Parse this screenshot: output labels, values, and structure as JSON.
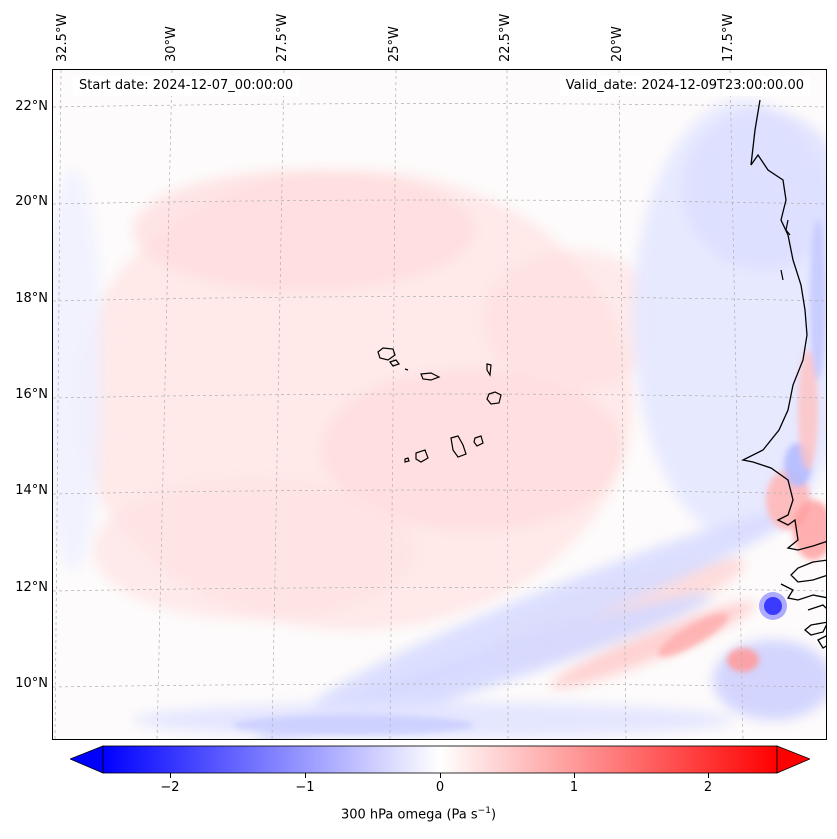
{
  "map": {
    "title_start": "Start date: 2024-12-07_00:00:00",
    "title_valid": "Valid_date: 2024-12-09T23:00:00.00",
    "lon_labels": [
      "32.5°W",
      "30°W",
      "27.5°W",
      "25°W",
      "22.5°W",
      "20°W",
      "17.5°W"
    ],
    "lat_labels": [
      "22°N",
      "20°N",
      "18°N",
      "16°N",
      "14°N",
      "12°N",
      "10°N"
    ],
    "region": "Cape Verde / West African coast",
    "field": "300 hPa vertical velocity (omega)"
  },
  "colorbar": {
    "label": "300 hPa omega (Pa s",
    "label_sup": "−1",
    "label_close": ")",
    "min": -2.6,
    "max": 2.6,
    "ticks": [
      {
        "value": -2,
        "label": "−2"
      },
      {
        "value": -1,
        "label": "−1"
      },
      {
        "value": 0,
        "label": "0"
      },
      {
        "value": 1,
        "label": "1"
      },
      {
        "value": 2,
        "label": "2"
      }
    ],
    "colors": {
      "negative": "#0000ff",
      "zero": "#ffffff",
      "positive": "#ff0000"
    },
    "extend": "both"
  },
  "colors": {
    "coastline": "#000000",
    "gridline": "#b0b0b0"
  }
}
